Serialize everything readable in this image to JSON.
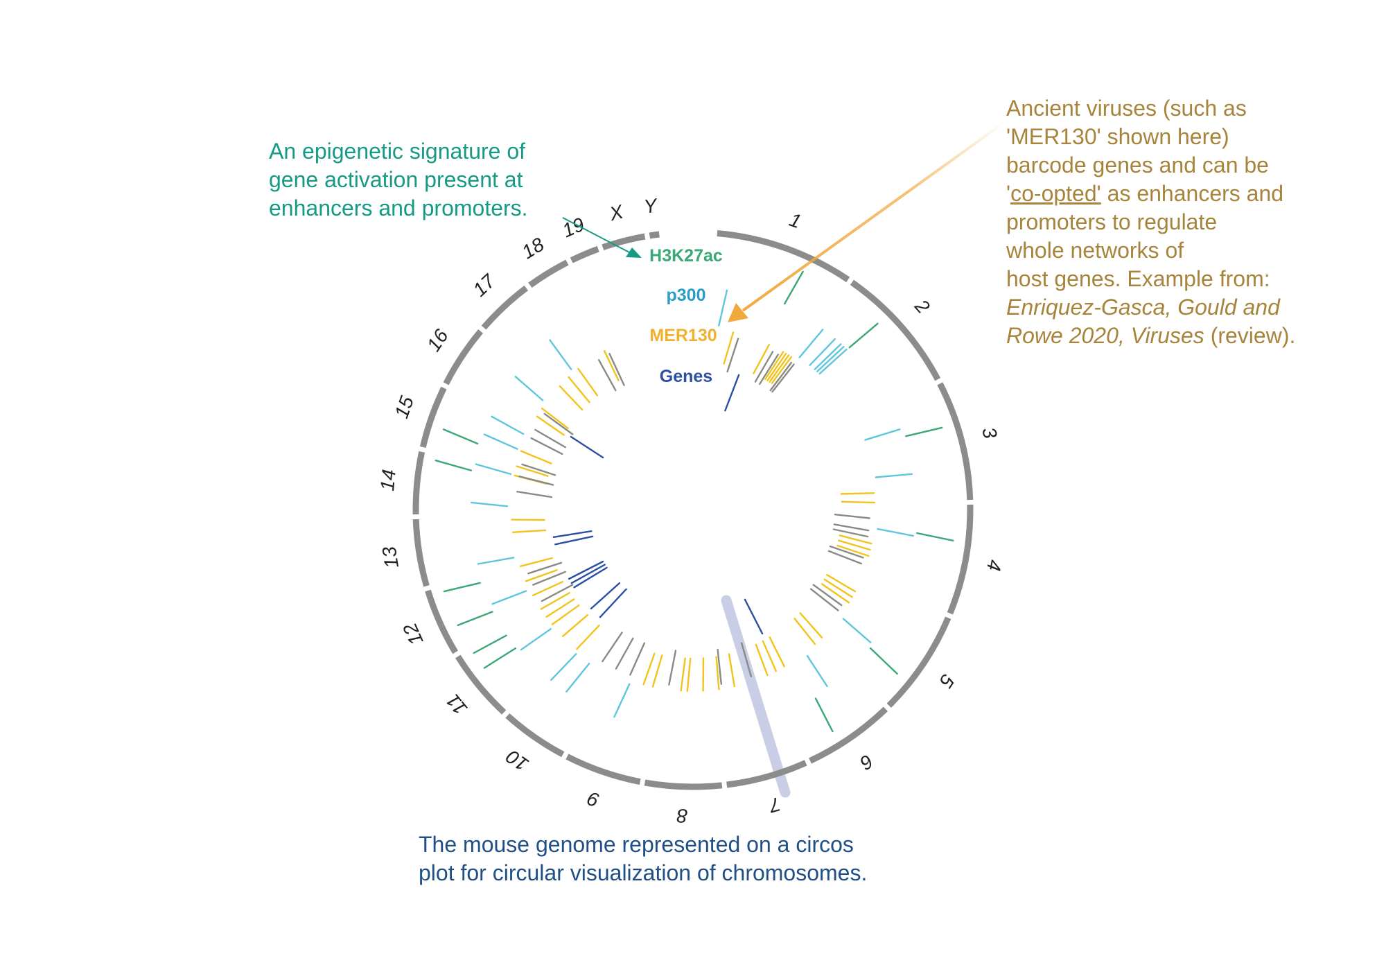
{
  "colors": {
    "h3k27ac": "#3aa776",
    "p300": "#5dc6dc",
    "mer130": "#f2c31b",
    "genes": "#2b4fa3",
    "gray_marks": "#8a8a84",
    "chromosome_band": "#8c8c8c",
    "epigenetic_text": "#169a86",
    "mouse_text": "#1f4f86",
    "virus_text": "#a7843c",
    "virus_arrow": "#f0a93c",
    "highlight": "#b7bddb"
  },
  "track_labels": {
    "h3k27ac": "H3K27ac",
    "p300": "p300",
    "mer130": "MER130",
    "genes": "Genes"
  },
  "chromosomes": [
    {
      "name": "1",
      "start": 5,
      "end": 34
    },
    {
      "name": "2",
      "start": 35,
      "end": 62
    },
    {
      "name": "3",
      "start": 63,
      "end": 88
    },
    {
      "name": "4",
      "start": 89,
      "end": 112
    },
    {
      "name": "5",
      "start": 113,
      "end": 135
    },
    {
      "name": "6",
      "start": 136,
      "end": 155
    },
    {
      "name": "7",
      "start": 156,
      "end": 173
    },
    {
      "name": "8",
      "start": 174,
      "end": 190
    },
    {
      "name": "9",
      "start": 191,
      "end": 207
    },
    {
      "name": "10",
      "start": 208,
      "end": 222
    },
    {
      "name": "11",
      "start": 223,
      "end": 238
    },
    {
      "name": "12",
      "start": 239,
      "end": 253
    },
    {
      "name": "13",
      "start": 254,
      "end": 268
    },
    {
      "name": "14",
      "start": 269,
      "end": 282
    },
    {
      "name": "15",
      "start": 283,
      "end": 296
    },
    {
      "name": "16",
      "start": 297,
      "end": 310
    },
    {
      "name": "17",
      "start": 311,
      "end": 323
    },
    {
      "name": "18",
      "start": 324,
      "end": 333
    },
    {
      "name": "19",
      "start": 334,
      "end": 340
    },
    {
      "name": "X",
      "start": 341,
      "end": 350
    },
    {
      "name": "Y",
      "start": 351,
      "end": 353
    }
  ],
  "annotations": {
    "epigenetic": [
      "An epigenetic signature of",
      "gene activation present at",
      "enhancers and promoters."
    ],
    "mouse": [
      "The mouse genome represented on a circos",
      "plot for circular visualization of chromosomes."
    ],
    "virus": {
      "line1": "Ancient viruses (such as",
      "line2": "'MER130' shown here)",
      "line3": "barcode genes and can be",
      "line4_pre": "'",
      "line4_link": "co-opted'",
      "line4_post": " as enhancers and",
      "line5": "promoters to regulate",
      "line6": "whole networks of",
      "line7": "host genes. Example from:",
      "line8": "Enriquez-Gasca, Gould and",
      "line9_italic": "Rowe 2020, Viruses",
      "line9_post": " (review)."
    }
  }
}
